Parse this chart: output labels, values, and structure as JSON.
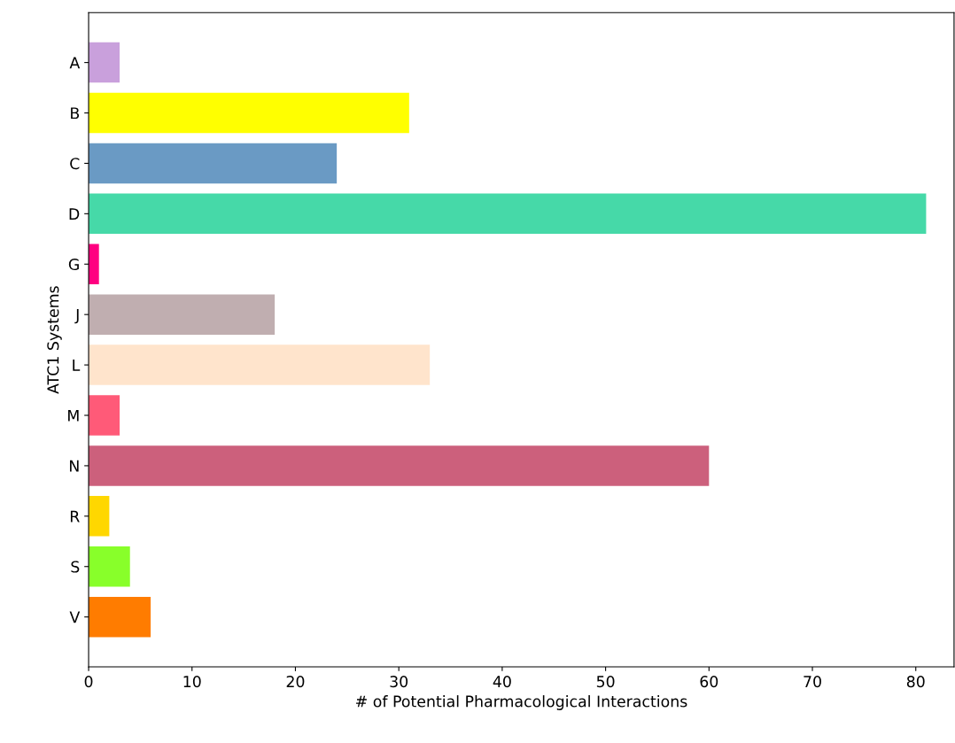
{
  "chart_data": {
    "type": "bar",
    "orientation": "horizontal",
    "xlabel": "# of Potential Pharmacological Interactions",
    "ylabel": "ATC1 Systems",
    "categories": [
      "A",
      "B",
      "C",
      "D",
      "G",
      "J",
      "L",
      "M",
      "N",
      "R",
      "S",
      "V"
    ],
    "values": [
      3,
      31,
      24,
      81,
      1,
      18,
      33,
      3,
      60,
      2,
      4,
      6
    ],
    "colors": [
      "#c9a0dc",
      "#ffff00",
      "#6a9ac4",
      "#46d9a8",
      "#ff0080",
      "#c0aeb0",
      "#ffe4cc",
      "#ff5a78",
      "#cc607c",
      "#ffd700",
      "#88ff2a",
      "#ff7c00"
    ],
    "xlim": [
      0,
      83.7
    ],
    "xticks": [
      0,
      10,
      20,
      30,
      40,
      50,
      60,
      70,
      80
    ],
    "grid": false
  }
}
